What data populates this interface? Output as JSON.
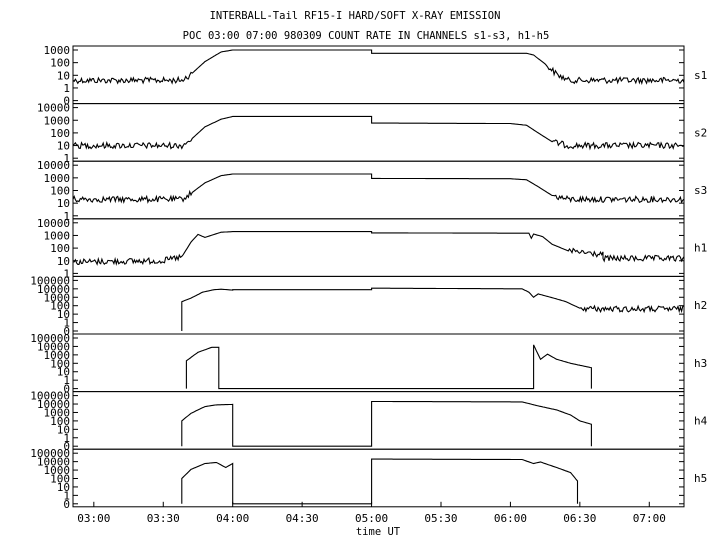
{
  "chart_data": {
    "type": "line",
    "title": "INTERBALL-Tail RF15-I HARD/SOFT X-RAY EMISSION",
    "subtitle": "POC 03:00 07:00 980309  COUNT RATE IN CHANNELS s1-s3, h1-h5",
    "xlabel": "time UT",
    "x_ticks": [
      "03:00",
      "03:30",
      "04:00",
      "04:30",
      "05:00",
      "05:30",
      "06:00",
      "06:30",
      "07:00"
    ],
    "xlim": [
      "02:51",
      "07:15"
    ],
    "yscale": "log",
    "grid": false,
    "panels": [
      {
        "name": "s1",
        "yticks": [
          "1000",
          "100",
          "10",
          "1",
          "0"
        ],
        "points": [
          [
            "02:51",
            4
          ],
          [
            "03:38",
            4
          ],
          [
            "03:42",
            12
          ],
          [
            "03:48",
            120
          ],
          [
            "03:55",
            700
          ],
          [
            "04:00",
            1000
          ],
          [
            "05:00",
            1000
          ],
          [
            "05:00",
            550
          ],
          [
            "06:07",
            550
          ],
          [
            "06:10",
            400
          ],
          [
            "06:15",
            80
          ],
          [
            "06:20",
            12
          ],
          [
            "06:25",
            4
          ],
          [
            "07:15",
            4
          ]
        ]
      },
      {
        "name": "s2",
        "yticks": [
          "10000",
          "1000",
          "100",
          "10",
          "1"
        ],
        "points": [
          [
            "02:51",
            10
          ],
          [
            "03:38",
            10
          ],
          [
            "03:42",
            30
          ],
          [
            "03:48",
            300
          ],
          [
            "03:55",
            1200
          ],
          [
            "04:00",
            2000
          ],
          [
            "05:00",
            2000
          ],
          [
            "05:00",
            600
          ],
          [
            "06:00",
            550
          ],
          [
            "06:07",
            400
          ],
          [
            "06:12",
            100
          ],
          [
            "06:18",
            20
          ],
          [
            "06:25",
            10
          ],
          [
            "07:15",
            10
          ]
        ]
      },
      {
        "name": "s3",
        "yticks": [
          "10000",
          "1000",
          "100",
          "10",
          "1"
        ],
        "points": [
          [
            "02:51",
            20
          ],
          [
            "03:38",
            20
          ],
          [
            "03:42",
            60
          ],
          [
            "03:48",
            400
          ],
          [
            "03:55",
            1500
          ],
          [
            "04:00",
            2000
          ],
          [
            "05:00",
            2000
          ],
          [
            "05:00",
            900
          ],
          [
            "06:00",
            850
          ],
          [
            "06:07",
            700
          ],
          [
            "06:12",
            200
          ],
          [
            "06:18",
            40
          ],
          [
            "06:25",
            20
          ],
          [
            "07:15",
            20
          ]
        ]
      },
      {
        "name": "h1",
        "yticks": [
          "10000",
          "1000",
          "100",
          "10",
          "1"
        ],
        "points": [
          [
            "02:51",
            8
          ],
          [
            "03:30",
            10
          ],
          [
            "03:38",
            20
          ],
          [
            "03:42",
            300
          ],
          [
            "03:45",
            1200
          ],
          [
            "03:48",
            700
          ],
          [
            "03:55",
            1800
          ],
          [
            "04:00",
            2000
          ],
          [
            "05:00",
            2000
          ],
          [
            "05:00",
            1600
          ],
          [
            "06:08",
            1500
          ],
          [
            "06:09",
            600
          ],
          [
            "06:10",
            1300
          ],
          [
            "06:14",
            800
          ],
          [
            "06:18",
            200
          ],
          [
            "06:25",
            60
          ],
          [
            "06:40",
            30
          ],
          [
            "06:40",
            15
          ],
          [
            "07:15",
            15
          ]
        ]
      },
      {
        "name": "h2",
        "yticks": [
          "100000",
          "10000",
          "1000",
          "100",
          "10",
          "1",
          "0"
        ],
        "points": [
          [
            "03:38",
            0
          ],
          [
            "03:38",
            300
          ],
          [
            "03:42",
            800
          ],
          [
            "03:47",
            4000
          ],
          [
            "03:52",
            8000
          ],
          [
            "03:55",
            9000
          ],
          [
            "04:00",
            7000
          ],
          [
            "04:00",
            8000
          ],
          [
            "05:00",
            8000
          ],
          [
            "05:00",
            12000
          ],
          [
            "06:05",
            10000
          ],
          [
            "06:08",
            4000
          ],
          [
            "06:10",
            1000
          ],
          [
            "06:12",
            2500
          ],
          [
            "06:18",
            900
          ],
          [
            "06:24",
            300
          ],
          [
            "06:30",
            50
          ],
          [
            "06:40",
            40
          ],
          [
            "07:15",
            40
          ]
        ]
      },
      {
        "name": "h3",
        "yticks": [
          "100000",
          "10000",
          "1000",
          "100",
          "10",
          "1",
          "0"
        ],
        "points": [
          [
            "03:40",
            0
          ],
          [
            "03:40",
            200
          ],
          [
            "03:45",
            2000
          ],
          [
            "03:51",
            8000
          ],
          [
            "03:54",
            8000
          ],
          [
            "03:54",
            0
          ],
          [
            "06:10",
            0
          ],
          [
            "06:10",
            15000
          ],
          [
            "06:13",
            300
          ],
          [
            "06:16",
            1200
          ],
          [
            "06:20",
            300
          ],
          [
            "06:26",
            100
          ],
          [
            "06:35",
            30
          ],
          [
            "06:35",
            0
          ]
        ]
      },
      {
        "name": "h4",
        "yticks": [
          "100000",
          "10000",
          "1000",
          "100",
          "10",
          "1",
          "0"
        ],
        "points": [
          [
            "03:38",
            0
          ],
          [
            "03:38",
            100
          ],
          [
            "03:42",
            800
          ],
          [
            "03:48",
            5000
          ],
          [
            "03:53",
            8000
          ],
          [
            "04:00",
            9000
          ],
          [
            "04:00",
            0
          ],
          [
            "05:00",
            0
          ],
          [
            "05:00",
            20000
          ],
          [
            "06:05",
            18000
          ],
          [
            "06:12",
            6000
          ],
          [
            "06:20",
            2000
          ],
          [
            "06:26",
            500
          ],
          [
            "06:30",
            100
          ],
          [
            "06:35",
            40
          ],
          [
            "06:35",
            0
          ]
        ]
      },
      {
        "name": "h5",
        "yticks": [
          "100000",
          "10000",
          "1000",
          "100",
          "10",
          "1",
          "0"
        ],
        "points": [
          [
            "03:38",
            0
          ],
          [
            "03:38",
            100
          ],
          [
            "03:42",
            1200
          ],
          [
            "03:48",
            6000
          ],
          [
            "03:53",
            8000
          ],
          [
            "03:57",
            2000
          ],
          [
            "04:00",
            6000
          ],
          [
            "04:00",
            0
          ],
          [
            "05:00",
            0
          ],
          [
            "05:00",
            20000
          ],
          [
            "06:05",
            18000
          ],
          [
            "06:10",
            6000
          ],
          [
            "06:13",
            9000
          ],
          [
            "06:20",
            2000
          ],
          [
            "06:26",
            500
          ],
          [
            "06:29",
            50
          ],
          [
            "06:29",
            0
          ]
        ]
      }
    ]
  }
}
